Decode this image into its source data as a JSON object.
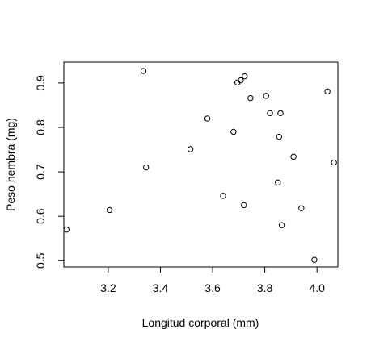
{
  "chart_data": {
    "type": "scatter",
    "title": "",
    "xlabel": "Longitud corporal (mm)",
    "ylabel": "Peso hembra (mg)",
    "xlim": [
      3.03,
      4.08
    ],
    "ylim": [
      0.486,
      0.947
    ],
    "xticks": [
      3.2,
      3.4,
      3.6,
      3.8,
      4.0
    ],
    "xtick_labels": [
      "3.2",
      "3.4",
      "3.6",
      "3.8",
      "4.0"
    ],
    "yticks": [
      0.5,
      0.6,
      0.7,
      0.8,
      0.9
    ],
    "ytick_labels": [
      "0.5",
      "0.6",
      "0.7",
      "0.8",
      "0.9"
    ],
    "grid": false,
    "marker": "open-circle",
    "points": [
      {
        "x": 3.04,
        "y": 0.57
      },
      {
        "x": 3.205,
        "y": 0.614
      },
      {
        "x": 3.335,
        "y": 0.927
      },
      {
        "x": 3.345,
        "y": 0.71
      },
      {
        "x": 3.515,
        "y": 0.751
      },
      {
        "x": 3.58,
        "y": 0.82
      },
      {
        "x": 3.64,
        "y": 0.646
      },
      {
        "x": 3.68,
        "y": 0.79
      },
      {
        "x": 3.695,
        "y": 0.901
      },
      {
        "x": 3.708,
        "y": 0.906
      },
      {
        "x": 3.723,
        "y": 0.915
      },
      {
        "x": 3.72,
        "y": 0.625
      },
      {
        "x": 3.745,
        "y": 0.866
      },
      {
        "x": 3.805,
        "y": 0.871
      },
      {
        "x": 3.82,
        "y": 0.832
      },
      {
        "x": 3.86,
        "y": 0.832
      },
      {
        "x": 3.855,
        "y": 0.779
      },
      {
        "x": 3.85,
        "y": 0.676
      },
      {
        "x": 3.865,
        "y": 0.58
      },
      {
        "x": 3.91,
        "y": 0.734
      },
      {
        "x": 3.94,
        "y": 0.618
      },
      {
        "x": 3.99,
        "y": 0.502
      },
      {
        "x": 4.04,
        "y": 0.881
      },
      {
        "x": 4.065,
        "y": 0.721
      }
    ]
  }
}
